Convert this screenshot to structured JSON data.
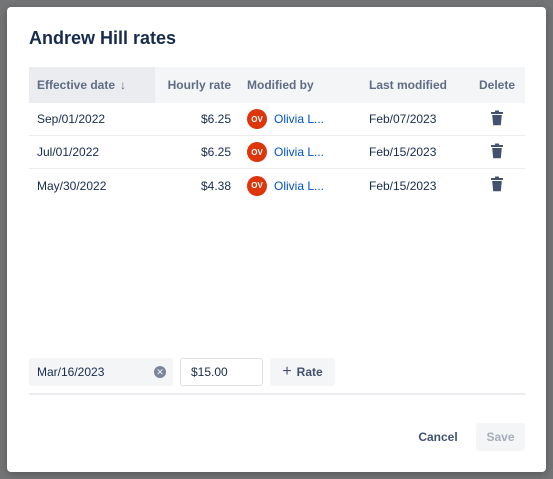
{
  "modal": {
    "title": "Andrew Hill rates"
  },
  "table": {
    "columns": {
      "effective_date": "Effective date",
      "sort_indicator": "↓",
      "hourly_rate": "Hourly rate",
      "modified_by": "Modified by",
      "last_modified": "Last modified",
      "delete": "Delete"
    },
    "rows": [
      {
        "effective_date": "Sep/01/2022",
        "hourly_rate": "$6.25",
        "avatar_initials": "OV",
        "modified_by": "Olivia L...",
        "last_modified": "Feb/07/2023"
      },
      {
        "effective_date": "Jul/01/2022",
        "hourly_rate": "$6.25",
        "avatar_initials": "OV",
        "modified_by": "Olivia L...",
        "last_modified": "Feb/15/2023"
      },
      {
        "effective_date": "May/30/2022",
        "hourly_rate": "$4.38",
        "avatar_initials": "OV",
        "modified_by": "Olivia L...",
        "last_modified": "Feb/15/2023"
      }
    ]
  },
  "new_rate": {
    "date_value": "Mar/16/2023",
    "rate_value": "$15.00",
    "add_button_label": "Rate"
  },
  "footer": {
    "cancel_label": "Cancel",
    "save_label": "Save"
  },
  "colors": {
    "avatar": "#de350b",
    "link": "#0052cc",
    "title": "#172b4d",
    "icon": "#42526e"
  },
  "icons": {
    "sort": "arrow-down-icon",
    "delete": "trash-icon",
    "clear": "clear-icon",
    "add": "plus-icon"
  }
}
